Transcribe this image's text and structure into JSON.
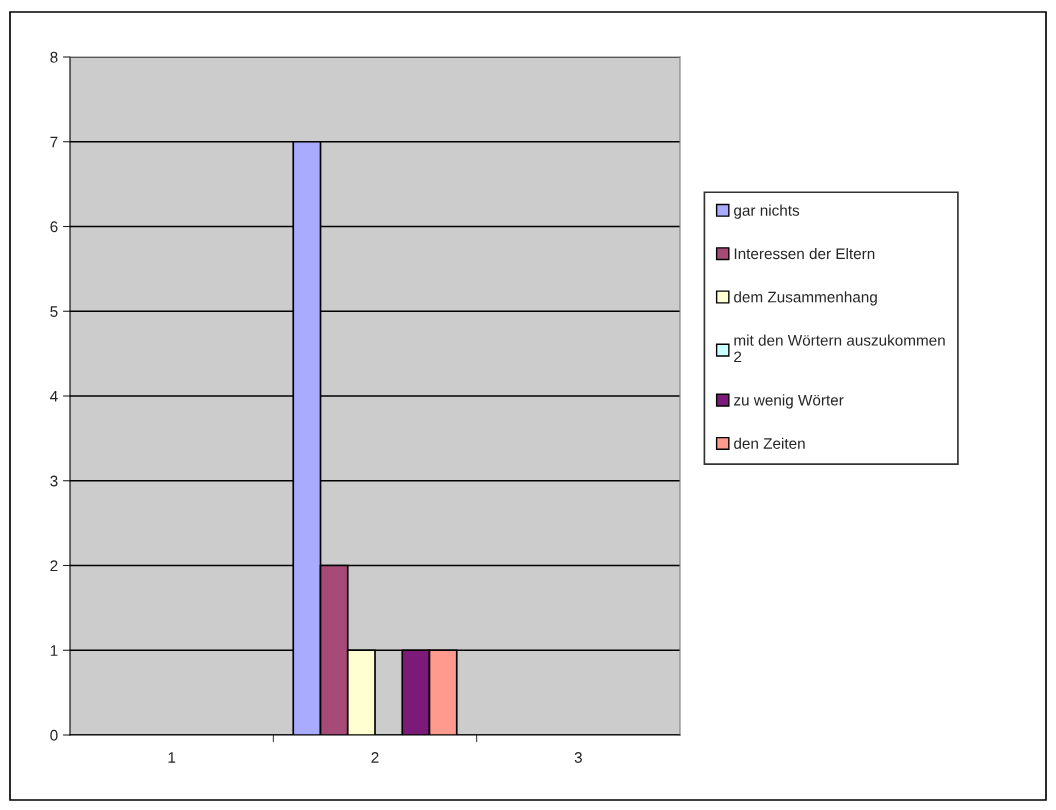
{
  "chart_data": {
    "type": "bar",
    "categories": [
      "1",
      "2",
      "3"
    ],
    "series": [
      {
        "name": "gar nichts",
        "color": "#a9abff",
        "values": [
          null,
          7,
          null
        ]
      },
      {
        "name": "Interessen der Eltern",
        "color": "#a64b77",
        "values": [
          null,
          2,
          null
        ]
      },
      {
        "name": "dem Zusammenhang",
        "color": "#ffffd2",
        "values": [
          null,
          1,
          null
        ]
      },
      {
        "name": "mit den Wörtern auszukommen\n2",
        "color": "#ccffff",
        "values": [
          null,
          null,
          null
        ]
      },
      {
        "name": "zu wenig Wörter",
        "color": "#7b1a78",
        "values": [
          null,
          1,
          null
        ]
      },
      {
        "name": "den Zeiten",
        "color": "#ff9a8f",
        "values": [
          null,
          1,
          null
        ]
      }
    ],
    "ylim": [
      0,
      8
    ],
    "yticks": [
      0,
      1,
      2,
      3,
      4,
      5,
      6,
      7,
      8
    ],
    "grid": "y",
    "legend": "right"
  }
}
